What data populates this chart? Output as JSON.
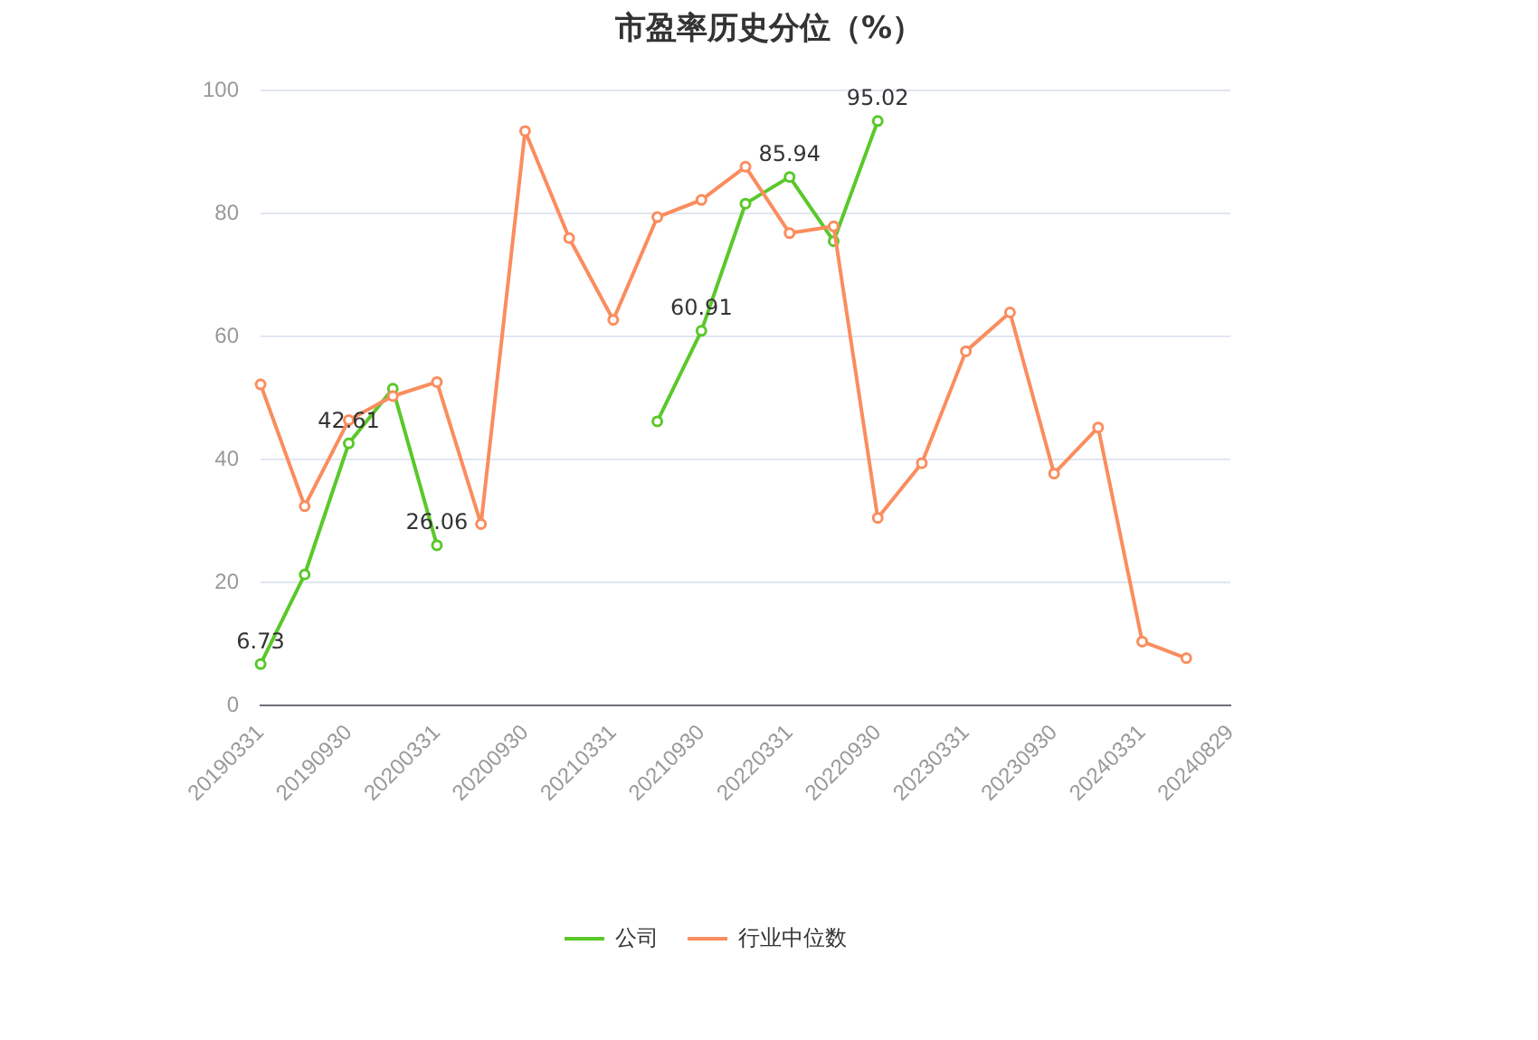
{
  "chart_data": {
    "type": "line",
    "title": "市盈率历史分位（%）",
    "categories": [
      "20190331",
      null,
      "20190930",
      null,
      "20200331",
      null,
      "20200930",
      null,
      "20210331",
      null,
      "20210930",
      null,
      "20220331",
      null,
      "20220930",
      null,
      "20230331",
      null,
      "20230930",
      null,
      "20240331",
      null,
      "20240829"
    ],
    "series": [
      {
        "name": "公司",
        "color": "#5ac82a",
        "values": [
          6.73,
          21.3,
          42.61,
          51.5,
          26.06,
          null,
          null,
          null,
          null,
          46.2,
          60.91,
          81.6,
          85.94,
          75.5,
          95.02,
          null,
          null,
          null,
          null,
          null,
          null,
          null,
          null
        ],
        "value_labels": [
          "6.73",
          null,
          "42.61",
          null,
          "26.06",
          null,
          null,
          null,
          null,
          null,
          "60.91",
          null,
          "85.94",
          null,
          "95.02",
          null,
          null,
          null,
          null,
          null,
          null,
          null,
          null
        ]
      },
      {
        "name": "行业中位数",
        "color": "#fa8d5e",
        "values": [
          52.2,
          32.4,
          46.4,
          50.3,
          52.6,
          29.5,
          93.4,
          76.0,
          62.7,
          79.4,
          82.2,
          87.6,
          76.8,
          77.9,
          30.5,
          39.4,
          57.6,
          63.9,
          37.7,
          45.2,
          10.4,
          7.7,
          null
        ]
      }
    ],
    "ylim": [
      0,
      100
    ],
    "yticks": [
      0,
      20,
      40,
      60,
      80,
      100
    ],
    "grid": "y",
    "legend": "bottom",
    "marker": "circle",
    "line_style": "solid"
  }
}
